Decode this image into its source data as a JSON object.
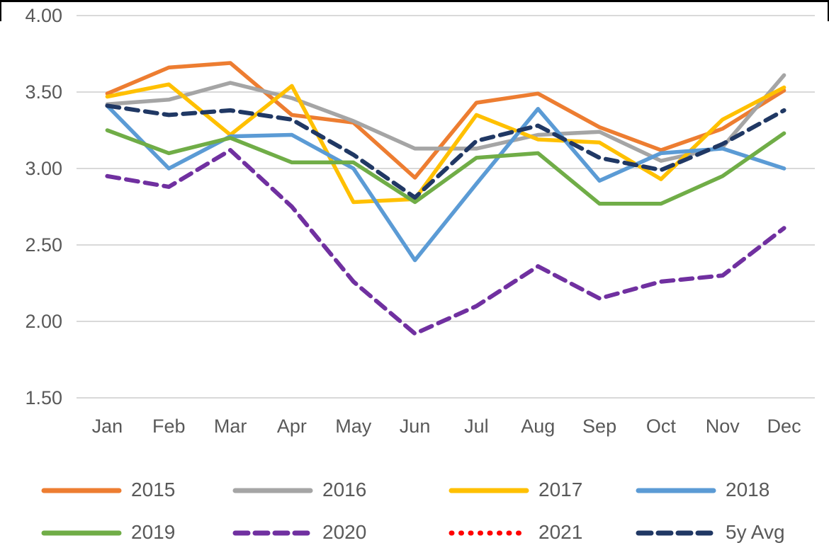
{
  "chart_data": {
    "type": "line",
    "title": "",
    "xlabel": "",
    "ylabel": "",
    "categories": [
      "Jan",
      "Feb",
      "Mar",
      "Apr",
      "May",
      "Jun",
      "Jul",
      "Aug",
      "Sep",
      "Oct",
      "Nov",
      "Dec"
    ],
    "y_ticks": [
      "4.00",
      "3.50",
      "3.00",
      "2.50",
      "2.00",
      "1.50"
    ],
    "ylim": [
      1.5,
      4.0
    ],
    "grid": "horizontal",
    "legend_position": "bottom",
    "series": [
      {
        "name": "2015",
        "color": "#ED7D31",
        "style": "solid",
        "values": [
          3.49,
          3.66,
          3.69,
          3.35,
          3.3,
          2.94,
          3.43,
          3.49,
          3.27,
          3.12,
          3.26,
          3.51
        ]
      },
      {
        "name": "2016",
        "color": "#A5A5A5",
        "style": "solid",
        "values": [
          3.42,
          3.45,
          3.56,
          3.46,
          3.31,
          3.13,
          3.13,
          3.22,
          3.24,
          3.05,
          3.14,
          3.61
        ]
      },
      {
        "name": "2017",
        "color": "#FFC000",
        "style": "solid",
        "values": [
          3.47,
          3.55,
          3.22,
          3.54,
          2.78,
          2.8,
          3.35,
          3.19,
          3.17,
          2.93,
          3.32,
          3.53
        ]
      },
      {
        "name": "2018",
        "color": "#5B9BD5",
        "style": "solid",
        "values": [
          3.41,
          3.0,
          3.21,
          3.22,
          3.0,
          2.4,
          2.9,
          3.39,
          2.92,
          3.1,
          3.13,
          3.0
        ]
      },
      {
        "name": "2019",
        "color": "#70AD47",
        "style": "solid",
        "values": [
          3.25,
          3.1,
          3.2,
          3.04,
          3.04,
          2.78,
          3.07,
          3.1,
          2.77,
          2.77,
          2.95,
          3.23
        ]
      },
      {
        "name": "2020",
        "color": "#7030A0",
        "style": "dashed",
        "values": [
          2.95,
          2.88,
          3.12,
          2.75,
          2.26,
          1.92,
          2.1,
          2.36,
          2.15,
          2.26,
          2.3,
          2.61
        ]
      },
      {
        "name": "2021",
        "color": "#FF0000",
        "style": "dotted",
        "values": []
      },
      {
        "name": "5y Avg",
        "color": "#203864",
        "style": "dashed",
        "values": [
          3.41,
          3.35,
          3.38,
          3.32,
          3.09,
          2.81,
          3.18,
          3.28,
          3.07,
          2.99,
          3.16,
          3.38
        ]
      }
    ]
  },
  "colors": {
    "grid": "#D9D9D9",
    "axis_text": "#595959",
    "border": "#000000",
    "background": "#FFFFFF"
  }
}
